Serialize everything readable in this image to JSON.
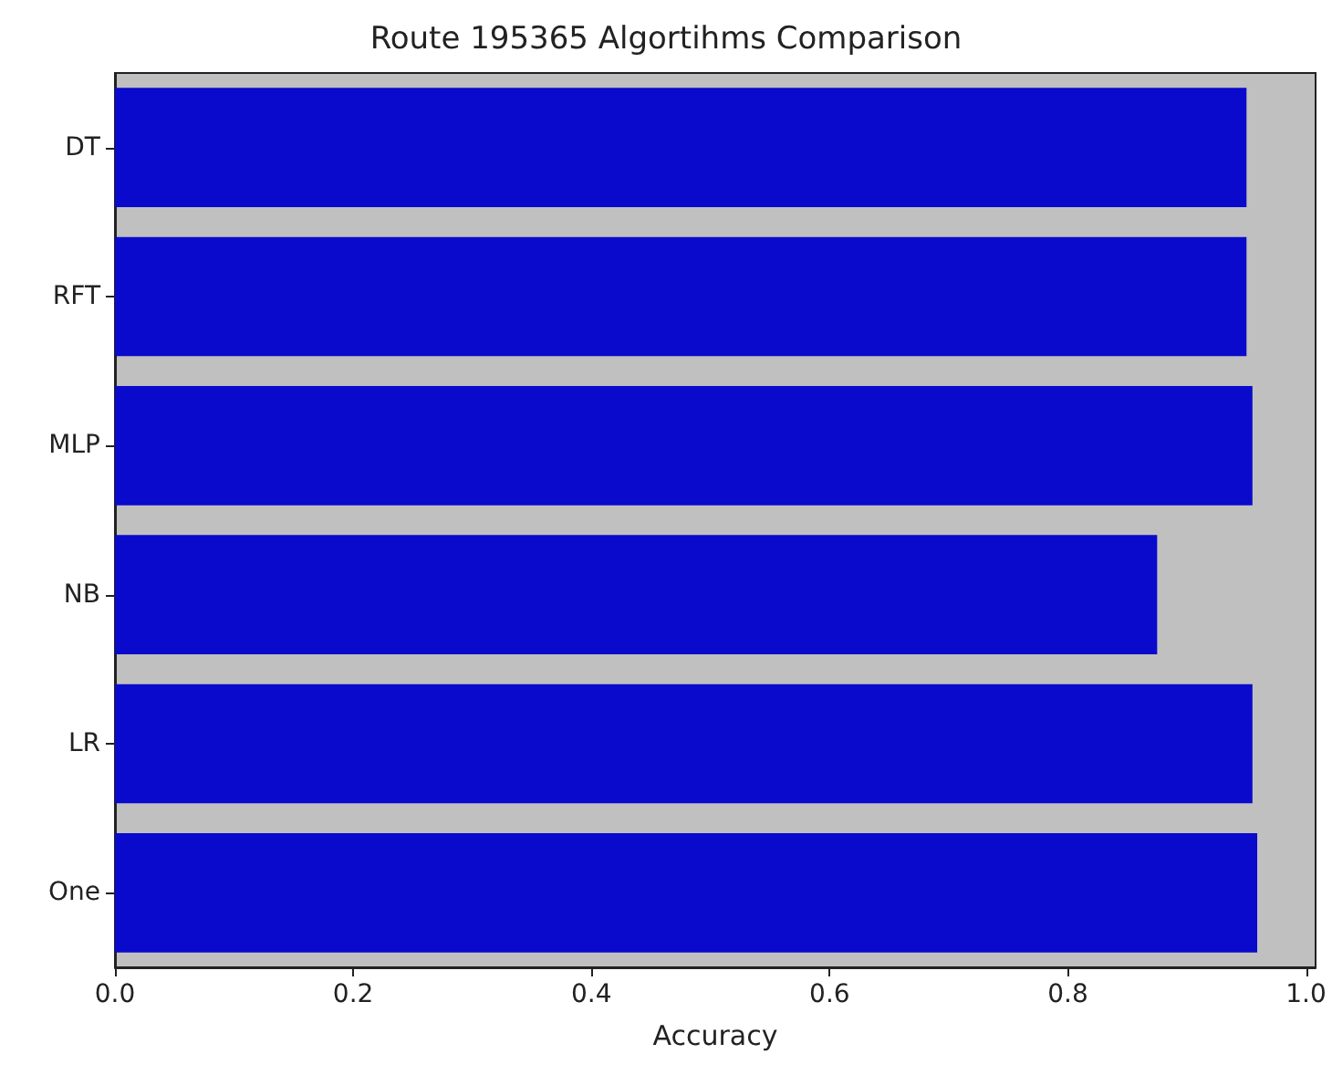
{
  "chart_data": {
    "type": "bar",
    "orientation": "horizontal",
    "title": "Route 195365 Algortihms Comparison",
    "xlabel": "Accuracy",
    "categories": [
      "DT",
      "RFT",
      "MLP",
      "NB",
      "LR",
      "One"
    ],
    "values": [
      0.95,
      0.95,
      0.955,
      0.875,
      0.955,
      0.959
    ],
    "color": "#0a0acc",
    "xlim": [
      0,
      1.008
    ],
    "xticks": [
      {
        "value": 0,
        "label": "0.0"
      },
      0.2,
      0.4,
      0.6,
      0.8,
      {
        "value": 1,
        "label": "1.0"
      }
    ],
    "grid": false
  }
}
